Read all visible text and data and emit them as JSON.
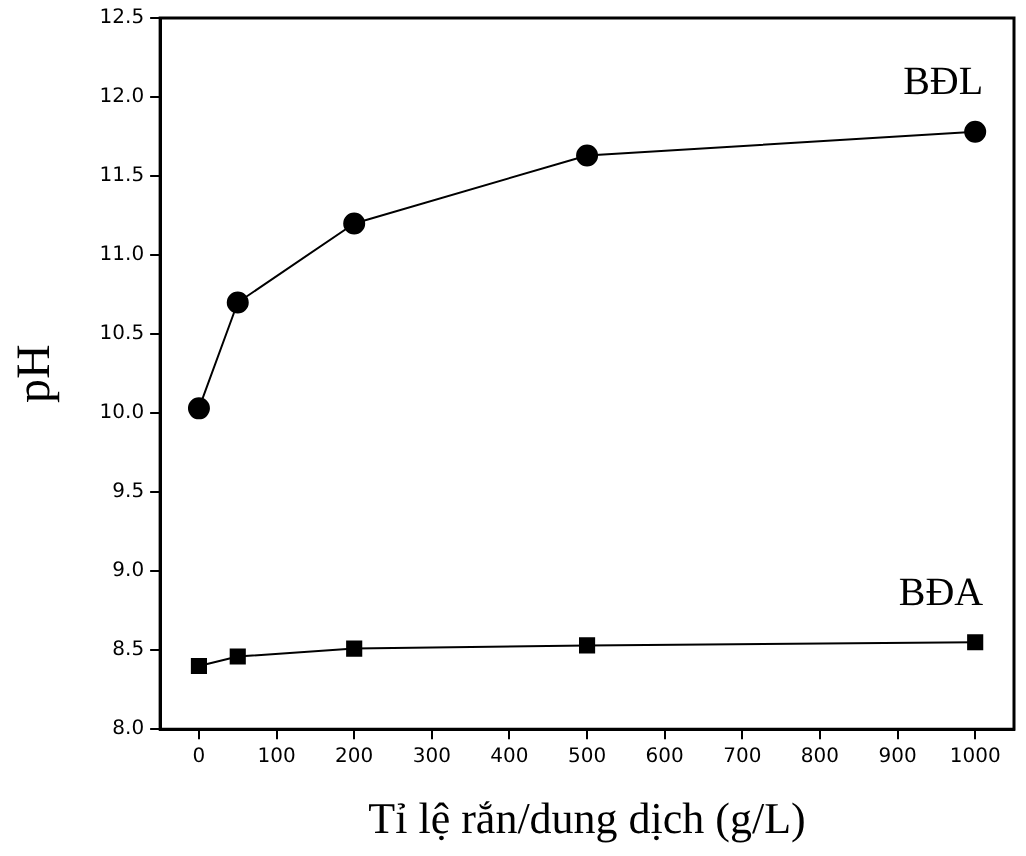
{
  "chart_data": {
    "type": "line",
    "xlabel": "Tỉ lệ rắn/dung dịch (g/L)",
    "ylabel": "pH",
    "x": [
      0,
      50,
      200,
      500,
      1000
    ],
    "series": [
      {
        "name": "BĐL",
        "color": "#000000",
        "marker": "circle",
        "values": [
          10.03,
          10.7,
          11.2,
          11.63,
          11.78
        ]
      },
      {
        "name": "BĐA",
        "color": "#000000",
        "marker": "square",
        "values": [
          8.4,
          8.46,
          8.51,
          8.53,
          8.55
        ]
      }
    ],
    "xlim": [
      -50,
      1050
    ],
    "xticks": [
      0,
      100,
      200,
      300,
      400,
      500,
      600,
      700,
      800,
      900,
      1000
    ],
    "ylim": [
      8,
      12.5
    ],
    "yticks": [
      {
        "value": 8,
        "label": "8.0"
      },
      {
        "value": 8.5,
        "label": "8.5"
      },
      {
        "value": 9,
        "label": "9.0"
      },
      {
        "value": 9.5,
        "label": "9.5"
      },
      {
        "value": 10,
        "label": "10.0"
      },
      {
        "value": 10.5,
        "label": "10.5"
      },
      {
        "value": 11,
        "label": "11.0"
      },
      {
        "value": 11.5,
        "label": "11.5"
      },
      {
        "value": 12,
        "label": "12.0"
      },
      {
        "value": 12.5,
        "label": "12.5"
      }
    ],
    "grid": false,
    "legend": false,
    "line_style": "solid"
  }
}
